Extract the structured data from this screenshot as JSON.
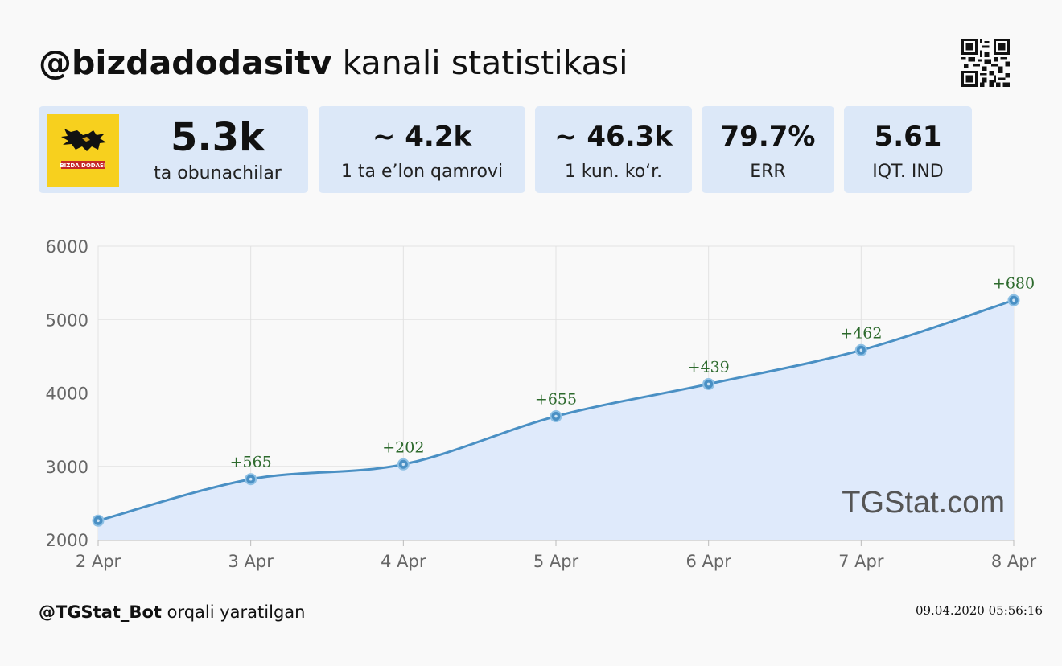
{
  "header": {
    "channel": "@bizdadodasitv",
    "title_suffix": "kanali statistikasi"
  },
  "stats": [
    {
      "value": "5.3k",
      "label": "ta obunachilar"
    },
    {
      "value": "~ 4.2k",
      "label": "1 ta e’lon qamrovi"
    },
    {
      "value": "~ 46.3k",
      "label": "1 kun. ko‘r."
    },
    {
      "value": "79.7%",
      "label": "ERR"
    },
    {
      "value": "5.61",
      "label": "IQT. IND"
    }
  ],
  "avatar": {
    "text": "BIZDA DODASI"
  },
  "chart_data": {
    "type": "area",
    "x": [
      "2 Apr",
      "3 Apr",
      "4 Apr",
      "5 Apr",
      "6 Apr",
      "7 Apr",
      "8 Apr"
    ],
    "y": [
      2260,
      2825,
      3027,
      3682,
      4121,
      4583,
      5263
    ],
    "point_labels": [
      "",
      "+565",
      "+202",
      "+655",
      "+439",
      "+462",
      "+680"
    ],
    "yticks": [
      "2000",
      "3000",
      "4000",
      "5000",
      "6000"
    ],
    "ylim": [
      2000,
      6000
    ],
    "grid": true,
    "line_color": "#4a90c4",
    "fill_color": "#dfeafb",
    "label_color": "#2d6a2d",
    "watermark": "TGStat.com"
  },
  "footer": {
    "bot": "@TGStat_Bot",
    "suffix": "orqali yaratilgan",
    "timestamp": "09.04.2020 05:56:16"
  }
}
